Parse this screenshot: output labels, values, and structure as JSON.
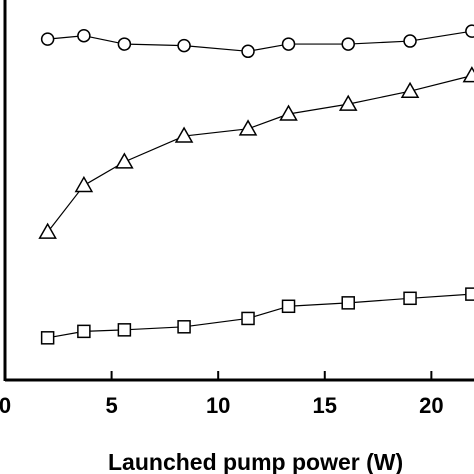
{
  "chart_data": {
    "type": "line",
    "title": "",
    "xlabel": "Launched pump power (W)",
    "ylabel": "",
    "xlim": [
      0,
      22
    ],
    "ylim": [
      0,
      100
    ],
    "x_ticks": [
      "0",
      "5",
      "10",
      "15",
      "20"
    ],
    "grid": false,
    "series": [
      {
        "marker": "circle",
        "x": [
          2.0,
          3.7,
          5.6,
          8.4,
          11.4,
          13.3,
          16.1,
          19.0,
          21.9
        ],
        "y": [
          89.7,
          90.6,
          88.4,
          88.0,
          86.5,
          88.4,
          88.4,
          89.2,
          91.8
        ]
      },
      {
        "marker": "triangle",
        "x": [
          2.0,
          3.7,
          5.6,
          8.4,
          11.4,
          13.3,
          16.1,
          19.0,
          21.9
        ],
        "y": [
          38.9,
          51.2,
          57.4,
          64.2,
          66.1,
          70.0,
          72.6,
          76.0,
          80.1
        ]
      },
      {
        "marker": "square",
        "x": [
          2.0,
          3.7,
          5.6,
          8.4,
          11.4,
          13.3,
          16.1,
          19.0,
          21.9
        ],
        "y": [
          11.1,
          12.8,
          13.2,
          14.0,
          16.2,
          19.4,
          20.3,
          21.5,
          22.6
        ]
      }
    ]
  }
}
